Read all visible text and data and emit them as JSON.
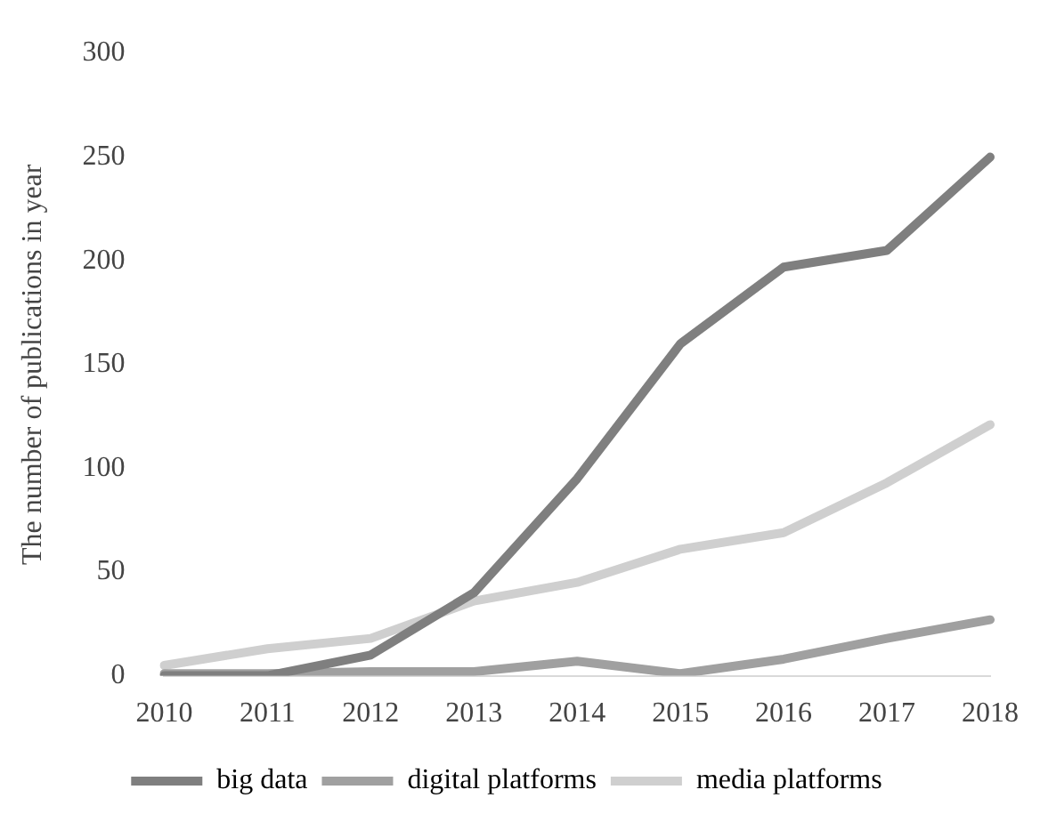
{
  "chart_data": {
    "type": "line",
    "ylabel": "The number of publications in year",
    "categories": [
      "2010",
      "2011",
      "2012",
      "2013",
      "2014",
      "2015",
      "2016",
      "2017",
      "2018"
    ],
    "series": [
      {
        "name": "big data",
        "color": "#7f7f7f",
        "values": [
          0,
          0,
          10,
          40,
          95,
          160,
          197,
          205,
          250
        ]
      },
      {
        "name": "digital platforms",
        "color": "#a0a0a0",
        "values": [
          1,
          1,
          2,
          2,
          7,
          1,
          8,
          18,
          27
        ]
      },
      {
        "name": "media platforms",
        "color": "#cfcfcf",
        "values": [
          5,
          13,
          18,
          36,
          45,
          61,
          69,
          93,
          121
        ]
      }
    ],
    "ylim": [
      0,
      300
    ],
    "yticks": [
      0,
      50,
      100,
      150,
      200,
      250,
      300
    ],
    "grid": false,
    "legend": "bottom",
    "marker": "none",
    "line_style": "solid"
  }
}
